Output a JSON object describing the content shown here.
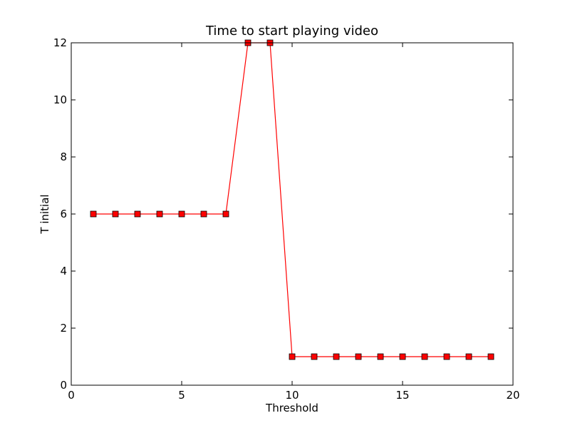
{
  "chart_data": {
    "type": "line",
    "title": "Time to start playing video",
    "xlabel": "Threshold",
    "ylabel": "T initial",
    "xlim": [
      0,
      20
    ],
    "ylim": [
      0,
      12
    ],
    "xticks": [
      0,
      5,
      10,
      15,
      20
    ],
    "yticks": [
      0,
      2,
      4,
      6,
      8,
      10,
      12
    ],
    "grid": false,
    "series": [
      {
        "color": "#ff0000",
        "marker": "square",
        "x": [
          1,
          2,
          3,
          4,
          5,
          6,
          7,
          8,
          9,
          10,
          11,
          12,
          13,
          14,
          15,
          16,
          17,
          18,
          19
        ],
        "y": [
          6,
          6,
          6,
          6,
          6,
          6,
          6,
          12,
          12,
          1,
          1,
          1,
          1,
          1,
          1,
          1,
          1,
          1,
          1
        ]
      }
    ]
  }
}
